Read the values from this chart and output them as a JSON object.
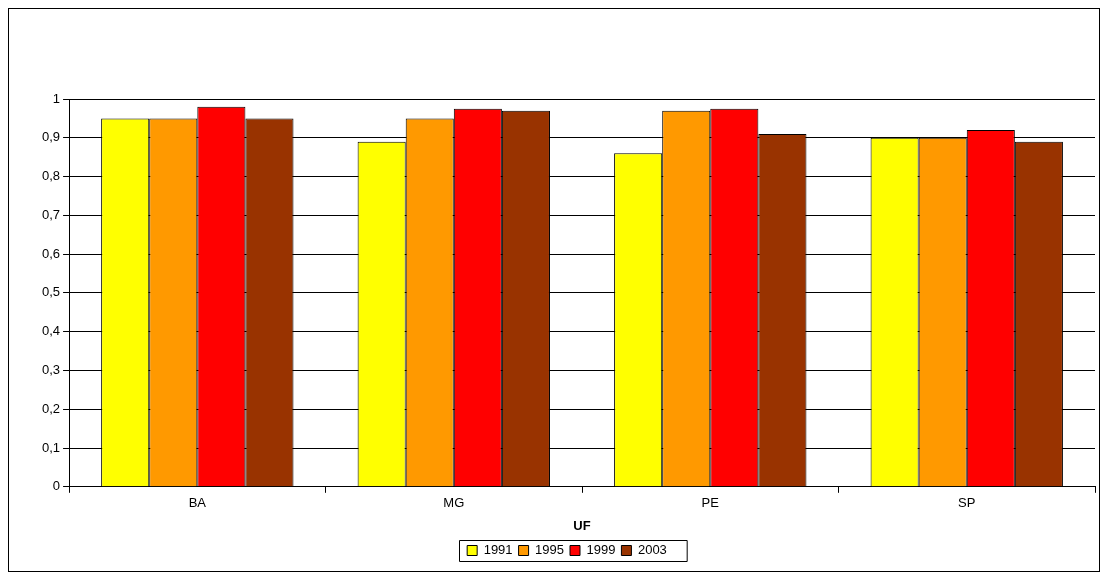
{
  "chart_data": {
    "type": "bar",
    "xlabel": "UF",
    "categories": [
      "BA",
      "MG",
      "PE",
      "SP"
    ],
    "series": [
      {
        "name": "1991",
        "color": "#ffff00",
        "values": [
          0.95,
          0.89,
          0.86,
          0.9
        ]
      },
      {
        "name": "1995",
        "color": "#ff9900",
        "values": [
          0.95,
          0.95,
          0.97,
          0.9
        ]
      },
      {
        "name": "1999",
        "color": "#ff0000",
        "values": [
          0.98,
          0.975,
          0.975,
          0.92
        ]
      },
      {
        "name": "2003",
        "color": "#993300",
        "values": [
          0.95,
          0.97,
          0.91,
          0.89
        ]
      }
    ],
    "ylim": [
      0,
      1
    ],
    "yticks": [
      0,
      {
        "value": 0.1,
        "label": "0,1"
      },
      {
        "value": 0.2,
        "label": "0,2"
      },
      {
        "value": 0.3,
        "label": "0,3"
      },
      {
        "value": 0.4,
        "label": "0,4"
      },
      {
        "value": 0.5,
        "label": "0,5"
      },
      {
        "value": 0.6,
        "label": "0,6"
      },
      {
        "value": 0.7,
        "label": "0,7"
      },
      {
        "value": 0.8,
        "label": "0,8"
      },
      {
        "value": 0.9,
        "label": "0,9"
      },
      1
    ],
    "grid": "y",
    "legend": "bottom"
  }
}
